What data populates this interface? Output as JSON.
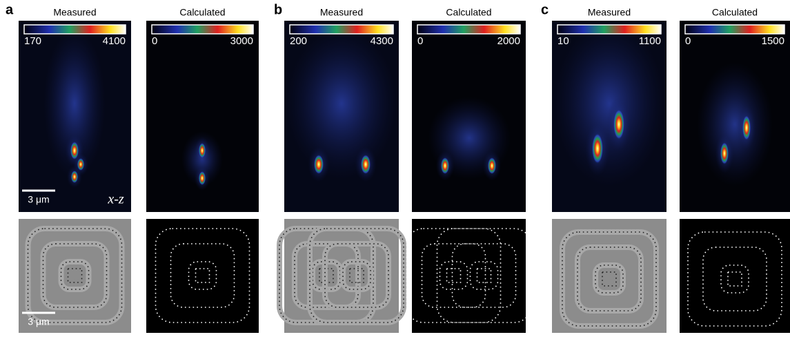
{
  "panels": [
    {
      "label": "a",
      "columns": [
        {
          "title": "Measured",
          "colorbar": {
            "min": 170,
            "max": 4100
          }
        },
        {
          "title": "Calculated",
          "colorbar": {
            "min": 0,
            "max": 3000
          }
        }
      ]
    },
    {
      "label": "b",
      "columns": [
        {
          "title": "Measured",
          "colorbar": {
            "min": 200,
            "max": 4300
          }
        },
        {
          "title": "Calculated",
          "colorbar": {
            "min": 0,
            "max": 2000
          }
        }
      ]
    },
    {
      "label": "c",
      "columns": [
        {
          "title": "Measured",
          "colorbar": {
            "min": 10,
            "max": 1100
          }
        },
        {
          "title": "Calculated",
          "colorbar": {
            "min": 0,
            "max": 1500
          }
        }
      ]
    }
  ],
  "scale_bars": [
    "3 μm",
    "3 μm"
  ],
  "plane_label": "x-z"
}
